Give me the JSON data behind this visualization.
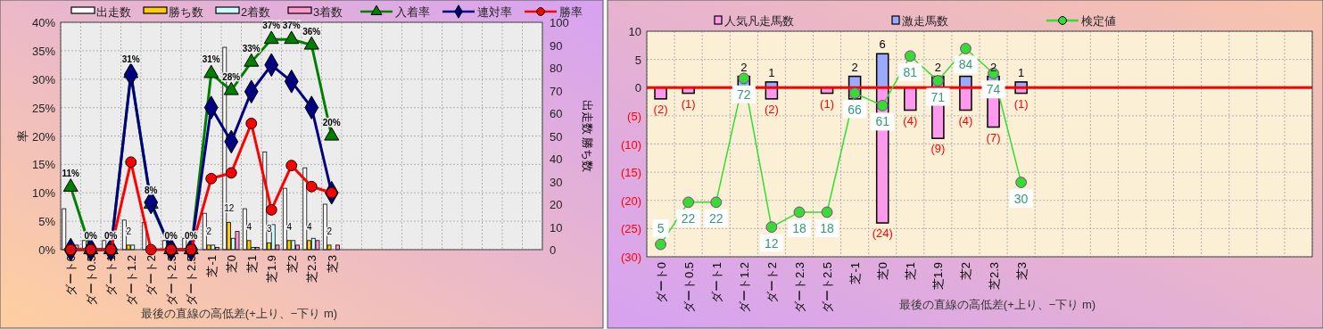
{
  "chart_data": [
    {
      "type": "bar",
      "xlabel": "最後の直線の高低差(+上り、−下り m)",
      "ylabel": "率",
      "y2label": "出走数 勝ち数",
      "legend": "top",
      "grid": true,
      "categories": [
        "ダート0",
        "ダート0.5",
        "ダート1",
        "ダート1.2",
        "ダート2",
        "ダート2.3",
        "ダート2.5",
        "芝-1",
        "芝0",
        "芝1",
        "芝1.9",
        "芝2",
        "芝2.3",
        "芝3",
        null,
        null,
        null,
        null,
        null,
        null,
        null,
        null,
        null,
        null
      ],
      "ylim": [
        0,
        40
      ],
      "yticks": [
        {
          "value": 0,
          "label": "0%"
        },
        {
          "value": 5,
          "label": "5%"
        },
        {
          "value": 10,
          "label": "10%"
        },
        {
          "value": 15,
          "label": "15%"
        },
        {
          "value": 20,
          "label": "20%"
        },
        {
          "value": 25,
          "label": "25%"
        },
        {
          "value": 30,
          "label": "30%"
        },
        {
          "value": 35,
          "label": "35%"
        },
        {
          "value": 40,
          "label": "40%"
        }
      ],
      "y2lim": [
        0,
        100
      ],
      "y2ticks": [
        0,
        10,
        20,
        30,
        40,
        50,
        60,
        70,
        80,
        90,
        100
      ],
      "series": [
        {
          "name": "出走数",
          "axis": "y2",
          "color": "#ffffff",
          "values": [
            18,
            4,
            4,
            13,
            12,
            4,
            5,
            16,
            89,
            18,
            43,
            27,
            36,
            20,
            null,
            null,
            null,
            null,
            null,
            null,
            null,
            null,
            null,
            null
          ]
        },
        {
          "name": "勝ち数",
          "axis": "y2",
          "color": "#ffcc00",
          "values": [
            0,
            0,
            0,
            2,
            0,
            0,
            0,
            2,
            12,
            4,
            3,
            4,
            4,
            2,
            null,
            null,
            null,
            null,
            null,
            null,
            null,
            null,
            null,
            null
          ],
          "value_labels": [
            null,
            null,
            null,
            "2",
            null,
            null,
            null,
            "2",
            "12",
            "4",
            "3",
            "4",
            "4",
            "2",
            null,
            null,
            null,
            null,
            null,
            null,
            null,
            null,
            null,
            null
          ]
        },
        {
          "name": "2着数",
          "axis": "y2",
          "color": "#ccffff",
          "values": [
            0,
            0,
            0,
            2,
            null,
            0,
            0,
            2,
            5,
            1,
            11,
            4,
            5,
            0,
            null,
            null,
            null,
            null,
            null,
            null,
            null,
            null,
            null,
            null
          ]
        },
        {
          "name": "3着数",
          "axis": "y2",
          "color": "#ff99cc",
          "values": [
            2,
            0,
            0,
            0,
            0,
            0,
            0,
            1,
            8,
            1,
            2,
            2,
            4,
            2,
            null,
            null,
            null,
            null,
            null,
            null,
            null,
            null,
            null,
            null
          ]
        },
        {
          "name": "入着率",
          "type": "line",
          "marker": "triangle",
          "color": "#008000",
          "values": [
            11,
            0,
            0,
            31,
            8,
            0,
            0,
            31,
            28,
            33,
            37,
            37,
            36,
            20,
            null,
            null,
            null,
            null,
            null,
            null,
            null,
            null,
            null,
            null
          ],
          "value_labels": [
            "11%",
            "0%",
            "0%",
            "31%",
            "8%",
            "0%",
            "0%",
            "31%",
            "28%",
            "33%",
            "37%",
            "37%",
            "36%",
            "20%",
            null,
            null,
            null,
            null,
            null,
            null,
            null,
            null,
            null,
            null
          ]
        },
        {
          "name": "連対率",
          "type": "line",
          "marker": "diamond",
          "color": "#000080",
          "values": [
            0,
            0,
            0,
            30.8,
            8.3,
            0,
            0,
            25,
            19,
            27.8,
            32.5,
            29.6,
            25,
            10,
            null,
            null,
            null,
            null,
            null,
            null,
            null,
            null,
            null,
            null
          ]
        },
        {
          "name": "勝率",
          "type": "line",
          "marker": "circle",
          "color": "#ff0000",
          "values": [
            0,
            0,
            0,
            15.4,
            0,
            0,
            0,
            12.5,
            13.5,
            22.2,
            7,
            14.8,
            11.1,
            10,
            null,
            null,
            null,
            null,
            null,
            null,
            null,
            null,
            null,
            null
          ]
        }
      ]
    },
    {
      "type": "bar",
      "stacked": true,
      "xlabel": "最後の直線の高低差(+上り、−下り m)",
      "legend": "top",
      "grid": true,
      "categories": [
        "ダート0",
        "ダート0.5",
        "ダート1",
        "ダート1.2",
        "ダート2",
        "ダート2.3",
        "ダート2.5",
        "芝-1",
        "芝0",
        "芝1",
        "芝1.9",
        "芝2",
        "芝2.3",
        "芝3",
        null,
        null,
        null,
        null,
        null,
        null,
        null,
        null,
        null,
        null
      ],
      "ylim": [
        -30,
        10
      ],
      "yticks": [
        {
          "value": -30,
          "label": "(30)"
        },
        {
          "value": -25,
          "label": "(25)"
        },
        {
          "value": -20,
          "label": "(20)"
        },
        {
          "value": -15,
          "label": "(15)"
        },
        {
          "value": -10,
          "label": "(10)"
        },
        {
          "value": -5,
          "label": "(5)"
        },
        0,
        5,
        10
      ],
      "y2lim": [
        0,
        91
      ],
      "ref_lines": [
        {
          "axis": "y",
          "value": 0,
          "color": "#ff0000"
        }
      ],
      "series": [
        {
          "name": "人気凡走馬数",
          "color": "#ff99ee",
          "values": [
            -2,
            -1,
            null,
            null,
            -2,
            null,
            -1,
            -2,
            -24,
            -4,
            -9,
            -4,
            -7,
            -1,
            null,
            null,
            null,
            null,
            null,
            null,
            null,
            null,
            null,
            null
          ],
          "value_labels": [
            "(2)",
            "(1)",
            null,
            null,
            "(2)",
            null,
            "(1)",
            null,
            "(24)",
            "(4)",
            "(9)",
            "(4)",
            "(7)",
            "(1)",
            null,
            null,
            null,
            null,
            null,
            null,
            null,
            null,
            null,
            null
          ]
        },
        {
          "name": "激走馬数",
          "color": "#99aaff",
          "values": [
            null,
            null,
            null,
            2,
            1,
            null,
            null,
            2,
            6,
            null,
            2,
            2,
            2,
            1,
            null,
            null,
            null,
            null,
            null,
            null,
            null,
            null,
            null,
            null
          ],
          "value_labels": [
            null,
            null,
            null,
            "2",
            "1",
            null,
            null,
            "2",
            "6",
            null,
            "2",
            null,
            "2",
            "1",
            null,
            null,
            null,
            null,
            null,
            null,
            null,
            null,
            null,
            null
          ]
        },
        {
          "name": "検定値",
          "type": "line",
          "axis": "y2",
          "marker": "circle",
          "color": "#33dd33",
          "values": [
            5,
            22,
            22,
            72,
            12,
            18,
            18,
            66,
            61,
            81,
            71,
            84,
            74,
            30,
            null,
            null,
            null,
            null,
            null,
            null,
            null,
            null,
            null,
            null
          ],
          "value_labels": [
            "5",
            "22",
            "22",
            "72",
            "12",
            "18",
            "18",
            "66",
            "61",
            "81",
            "71",
            "84",
            "74",
            "30",
            null,
            null,
            null,
            null,
            null,
            null,
            null,
            null,
            null,
            null
          ]
        }
      ]
    }
  ]
}
